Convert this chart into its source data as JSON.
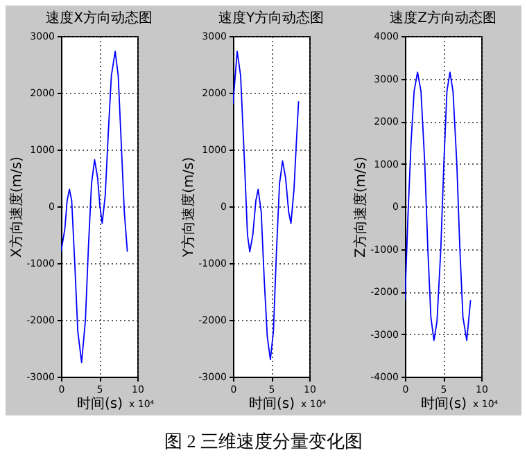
{
  "chart_data": [
    {
      "type": "line",
      "title": "速度X方向动态图",
      "xlabel": "时间(s)",
      "ylabel": "X方向速度(m/s)",
      "xlim": [
        0,
        10
      ],
      "ylim": [
        -3000,
        3000
      ],
      "xticks": [
        0,
        5,
        10
      ],
      "yticks": [
        -3000,
        -2000,
        -1000,
        0,
        1000,
        2000,
        3000
      ],
      "grid": true,
      "annotations": [
        "x 10⁴",
        "图 2 三维速度分量变化图"
      ],
      "series": [
        {
          "color": "#0000ff",
          "x": [
            0,
            0.5,
            0.8,
            1.1,
            1.4,
            1.8,
            2.2,
            2.7,
            3.2,
            3.6,
            4.0,
            4.4,
            4.8,
            5.1,
            5.4,
            5.8,
            6.2,
            6.6,
            7.1,
            7.5,
            7.9,
            8.3,
            8.7
          ],
          "values": [
            -800,
            -400,
            100,
            300,
            100,
            -1000,
            -2200,
            -2750,
            -2000,
            -700,
            400,
            820,
            500,
            0,
            -300,
            200,
            1300,
            2300,
            2730,
            2300,
            1100,
            -100,
            -800
          ]
        }
      ]
    },
    {
      "type": "line",
      "title": "速度Y方向动态图",
      "xlabel": "时间(s)",
      "ylabel": "Y方向速度(m/s)",
      "xlim": [
        0,
        10
      ],
      "ylim": [
        -3000,
        3000
      ],
      "xticks": [
        0,
        5,
        10
      ],
      "yticks": [
        -3000,
        -2000,
        -1000,
        0,
        1000,
        2000,
        3000
      ],
      "grid": true,
      "annotations": [
        "x 10⁴"
      ],
      "series": [
        {
          "color": "#0000ff",
          "x": [
            0,
            0.55,
            1.0,
            1.5,
            1.9,
            2.2,
            2.6,
            3.0,
            3.3,
            3.7,
            4.1,
            4.5,
            4.9,
            5.3,
            5.7,
            6.1,
            6.5,
            6.9,
            7.3,
            7.6,
            8.0,
            8.3,
            8.6
          ],
          "values": [
            1800,
            2730,
            2300,
            800,
            -500,
            -800,
            -500,
            100,
            300,
            -100,
            -1300,
            -2300,
            -2700,
            -2200,
            -800,
            400,
            800,
            500,
            -100,
            -300,
            300,
            1100,
            1850
          ]
        }
      ]
    },
    {
      "type": "line",
      "title": "速度Z方向动态图",
      "xlabel": "时间(s)",
      "ylabel": "Z方向速度(m/s)",
      "xlim": [
        0,
        10
      ],
      "ylim": [
        -4000,
        4000
      ],
      "xticks": [
        0,
        5,
        10
      ],
      "yticks": [
        -4000,
        -3000,
        -2000,
        -1000,
        0,
        1000,
        2000,
        3000,
        4000
      ],
      "grid": true,
      "annotations": [
        "x 10⁴"
      ],
      "series": [
        {
          "color": "#0000ff",
          "x": [
            0,
            0.4,
            0.8,
            1.2,
            1.65,
            2.1,
            2.6,
            3.0,
            3.4,
            3.8,
            4.2,
            4.7,
            5.1,
            5.5,
            5.9,
            6.3,
            6.8,
            7.2,
            7.6,
            8.1,
            8.6
          ],
          "values": [
            -2200,
            -200,
            1500,
            2700,
            3150,
            2700,
            1000,
            -1000,
            -2600,
            -3150,
            -2700,
            -1000,
            1000,
            2700,
            3150,
            2700,
            1000,
            -1000,
            -2600,
            -3150,
            -2200
          ]
        }
      ]
    }
  ]
}
